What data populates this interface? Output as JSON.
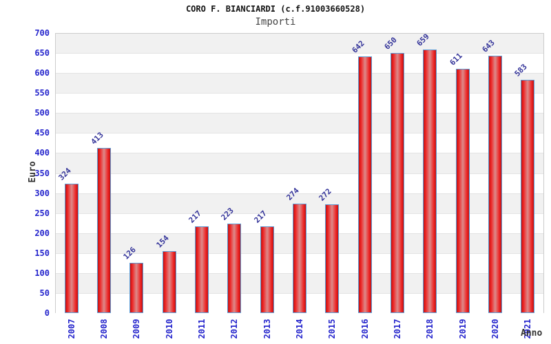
{
  "chart_data": {
    "type": "bar",
    "title": "CORO F. BIANCIARDI (c.f.91003660528)",
    "subtitle": "Importi",
    "xlabel": "Anno",
    "ylabel": "Euro",
    "categories": [
      "2007",
      "2008",
      "2009",
      "2010",
      "2011",
      "2012",
      "2013",
      "2014",
      "2015",
      "2016",
      "2017",
      "2018",
      "2019",
      "2020",
      "2021"
    ],
    "values": [
      324,
      413,
      126,
      154,
      217,
      223,
      217,
      274,
      272,
      642,
      650,
      659,
      611,
      643,
      583
    ],
    "ylim": [
      0,
      700
    ],
    "ytick_step": 50,
    "y_ticks": [
      0,
      50,
      100,
      150,
      200,
      250,
      300,
      350,
      400,
      450,
      500,
      550,
      600,
      650,
      700
    ],
    "grid": "horizontal-bands-alternating",
    "legend": "none",
    "bar_value_labels_rotation_deg": -45,
    "x_tick_rotation_deg": -90
  },
  "colors": {
    "bar_fill_edge": "#bb1414",
    "bar_fill_main": "#ee2222",
    "bar_fill_center": "#dd8a8a",
    "bar_border": "#5b9bd5",
    "tick_text": "#2424cc",
    "value_label_text": "#333399",
    "band_gray": "#f1f1f1",
    "band_white": "#ffffff",
    "gridline": "#e3e3e3",
    "title_text": "#111111",
    "subtitle_text": "#444444",
    "axis_title_text": "#333333"
  }
}
